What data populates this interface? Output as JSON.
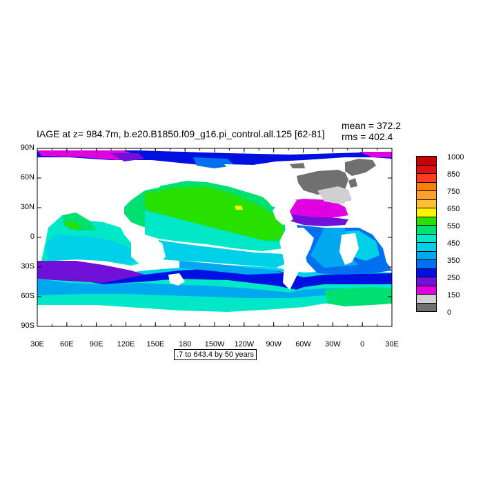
{
  "title": "IAGE at z= 984.7m, b.e20.B1850.f09_g16.pi_control.all.125 [62-81]",
  "stats": {
    "mean": "mean = 372.2",
    "rms": "rms = 402.4"
  },
  "axes": {
    "x_ticks": [
      "30E",
      "60E",
      "90E",
      "120E",
      "150E",
      "180",
      "150W",
      "120W",
      "90W",
      "60W",
      "30W",
      "0",
      "30E"
    ],
    "y_ticks": [
      "90N",
      "60N",
      "30N",
      "0",
      "30S",
      "60S",
      "90S"
    ]
  },
  "range_label": ".7 to 643.4 by 50 years",
  "colorbar": {
    "colors": [
      "#c80000",
      "#e01010",
      "#ff3b1f",
      "#ff7f00",
      "#ff9f30",
      "#ffc030",
      "#fff200",
      "#28e000",
      "#00e070",
      "#00e8c8",
      "#00d0e8",
      "#00a8f0",
      "#0070f0",
      "#0010e0",
      "#7010d8",
      "#e000e0",
      "#d0d0d0",
      "#707070"
    ],
    "labels": [
      {
        "text": "1000",
        "index": 0
      },
      {
        "text": "850",
        "index": 2
      },
      {
        "text": "750",
        "index": 4
      },
      {
        "text": "650",
        "index": 6
      },
      {
        "text": "550",
        "index": 8
      },
      {
        "text": "450",
        "index": 10
      },
      {
        "text": "350",
        "index": 12
      },
      {
        "text": "250",
        "index": 14
      },
      {
        "text": "150",
        "index": 16
      },
      {
        "text": "0",
        "index": 18
      }
    ]
  }
}
